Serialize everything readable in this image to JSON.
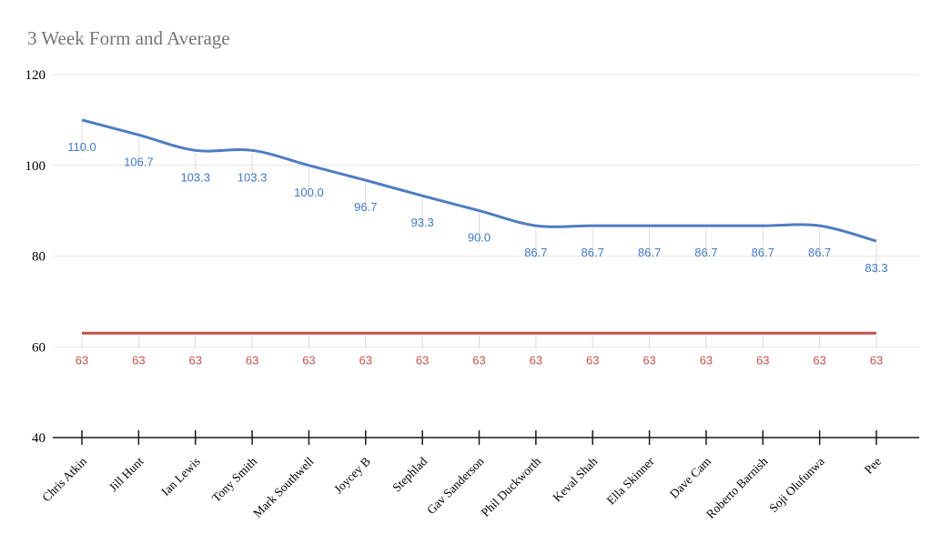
{
  "title": {
    "text": "3 Week Form and Average",
    "color": "#757575"
  },
  "chart_data": {
    "type": "line",
    "title": "3 Week Form and Average",
    "categories": [
      "Chris Atkin",
      "Jill Hunt",
      "Ian Lewis",
      "Tony Smith",
      "Mark Southwell",
      "Joycey B",
      "Stephlad",
      "Gav Sanderson",
      "Phil Duckworth",
      "Keval Shah",
      "Ella Skinner",
      "Dave Cam",
      "Roberto Barnish",
      "Soji Olufunwa",
      "Pee"
    ],
    "series": [
      {
        "name": "form",
        "color": "#4E7CC2",
        "label_color": "#3F78C6",
        "smooth": true,
        "values": [
          110.0,
          106.7,
          103.3,
          103.3,
          100.0,
          96.7,
          93.3,
          90.0,
          86.7,
          86.7,
          86.7,
          86.7,
          86.7,
          86.7,
          83.3
        ],
        "labels": [
          "110.0",
          "106.7",
          "103.3",
          "103.3",
          "100.0",
          "96.7",
          "93.3",
          "90.0",
          "86.7",
          "86.7",
          "86.7",
          "86.7",
          "86.7",
          "86.7",
          "83.3"
        ]
      },
      {
        "name": "average",
        "color": "#C5514B",
        "label_color": "#C5514B",
        "smooth": false,
        "values": [
          63,
          63,
          63,
          63,
          63,
          63,
          63,
          63,
          63,
          63,
          63,
          63,
          63,
          63,
          63
        ],
        "labels": [
          "63",
          "63",
          "63",
          "63",
          "63",
          "63",
          "63",
          "63",
          "63",
          "63",
          "63",
          "63",
          "63",
          "63",
          "63"
        ]
      }
    ],
    "ylim": [
      40,
      120
    ],
    "y_ticks": [
      120,
      100,
      80,
      60,
      40
    ],
    "grid": true,
    "legend": "none",
    "x_label_rotation": -45,
    "colors": {
      "gridline": "#e6e6e6",
      "leader_line": "#dcdcdc",
      "axis_line": "#525252",
      "axis_tick": "#1a1a1a",
      "tick_label": "#000000"
    }
  }
}
